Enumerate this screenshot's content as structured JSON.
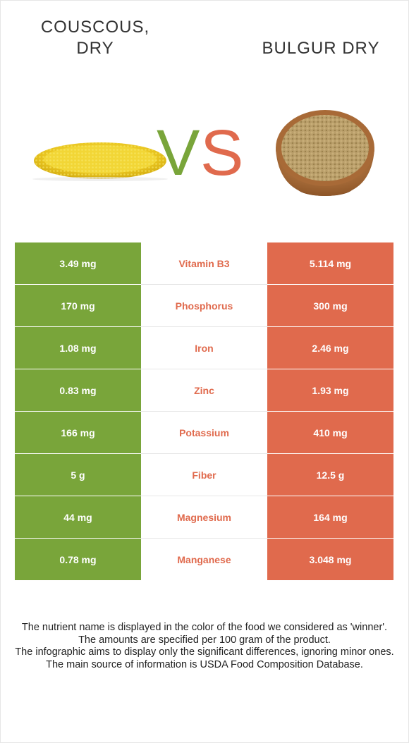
{
  "food_left": {
    "title_line1": "COUSCOUS,",
    "title_line2": "DRY",
    "color": "#79a53a"
  },
  "food_right": {
    "title": "BULGUR DRY",
    "color": "#e06a4d"
  },
  "vs": {
    "v": "V",
    "s": "S"
  },
  "rows": [
    {
      "left": "3.49 mg",
      "nutrient": "Vitamin B3",
      "right": "5.114 mg"
    },
    {
      "left": "170 mg",
      "nutrient": "Phosphorus",
      "right": "300 mg"
    },
    {
      "left": "1.08 mg",
      "nutrient": "Iron",
      "right": "2.46 mg"
    },
    {
      "left": "0.83 mg",
      "nutrient": "Zinc",
      "right": "1.93 mg"
    },
    {
      "left": "166 mg",
      "nutrient": "Potassium",
      "right": "410 mg"
    },
    {
      "left": "5 g",
      "nutrient": "Fiber",
      "right": "12.5 g"
    },
    {
      "left": "44 mg",
      "nutrient": "Magnesium",
      "right": "164 mg"
    },
    {
      "left": "0.78 mg",
      "nutrient": "Manganese",
      "right": "3.048 mg"
    }
  ],
  "notes": [
    "The nutrient name is displayed in the color of the food we considered as 'winner'.",
    "The amounts are specified per 100 gram of the product.",
    "The infographic aims to display only the significant differences, ignoring minor ones.",
    "The main source of information is USDA Food Composition Database."
  ]
}
